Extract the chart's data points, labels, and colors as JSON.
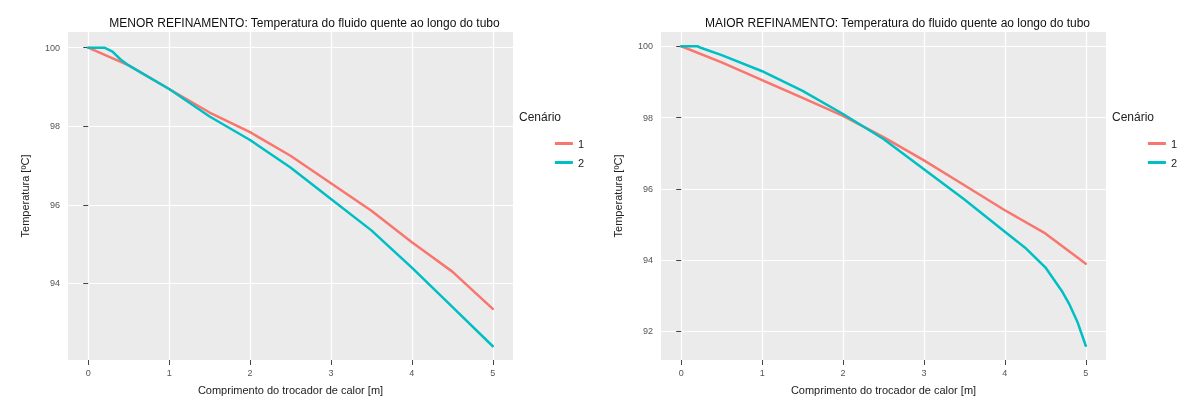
{
  "chart_data": [
    {
      "type": "line",
      "title": "MENOR REFINAMENTO: Temperatura do fluido quente ao longo do tubo",
      "xlabel": "Comprimento do trocador de calor [m]",
      "ylabel": "Temperatura [ºC]",
      "legend_title": "Cenário",
      "legend": "right",
      "grid": true,
      "marker": "none",
      "line_style": "solid",
      "xlim": [
        -0.25,
        5.25
      ],
      "xticks": [
        0,
        1,
        2,
        3,
        4,
        5
      ],
      "ylim": [
        92.05,
        100.4
      ],
      "yticks": [
        94,
        96,
        98,
        100
      ],
      "series": [
        {
          "name": "1",
          "color": "#f8766d",
          "x": [
            0,
            0.5,
            1,
            1.5,
            2,
            2.5,
            3,
            3.5,
            4,
            4.5,
            5
          ],
          "values": [
            100,
            99.55,
            98.95,
            98.35,
            97.85,
            97.25,
            96.55,
            95.85,
            95.05,
            94.3,
            93.35
          ]
        },
        {
          "name": "2",
          "color": "#00bfc4",
          "x": [
            0,
            0.1,
            0.2,
            0.3,
            0.4,
            0.5,
            1,
            1.5,
            2,
            2.5,
            3,
            3.5,
            4,
            4.5,
            5
          ],
          "values": [
            100,
            100,
            100,
            99.9,
            99.7,
            99.55,
            98.95,
            98.25,
            97.65,
            96.95,
            96.15,
            95.35,
            94.4,
            93.4,
            92.4
          ]
        }
      ]
    },
    {
      "type": "line",
      "title": "MAIOR REFINAMENTO: Temperatura do fluido quente ao longo do tubo",
      "xlabel": "Comprimento do trocador de calor [m]",
      "ylabel": "Temperatura [ºC]",
      "legend_title": "Cenário",
      "legend": "right",
      "grid": true,
      "marker": "none",
      "line_style": "solid",
      "xlim": [
        -0.25,
        5.25
      ],
      "xticks": [
        0,
        1,
        2,
        3,
        4,
        5
      ],
      "ylim": [
        91.2,
        100.4
      ],
      "yticks": [
        92,
        94,
        96,
        98,
        100
      ],
      "series": [
        {
          "name": "1",
          "color": "#f8766d",
          "x": [
            0,
            0.5,
            1,
            1.5,
            2,
            2.5,
            3,
            3.5,
            4,
            4.5,
            5
          ],
          "values": [
            100,
            99.55,
            99.05,
            98.55,
            98.05,
            97.45,
            96.8,
            96.1,
            95.4,
            94.75,
            93.9
          ]
        },
        {
          "name": "2",
          "color": "#00bfc4",
          "x": [
            0,
            0.2,
            0.25,
            0.5,
            1,
            1.5,
            2,
            2.5,
            3,
            3.5,
            4,
            4.25,
            4.5,
            4.7,
            4.8,
            4.9,
            5
          ],
          "values": [
            100,
            100,
            99.95,
            99.75,
            99.3,
            98.75,
            98.1,
            97.4,
            96.55,
            95.7,
            94.8,
            94.35,
            93.8,
            93.15,
            92.75,
            92.25,
            91.6
          ]
        }
      ]
    }
  ]
}
